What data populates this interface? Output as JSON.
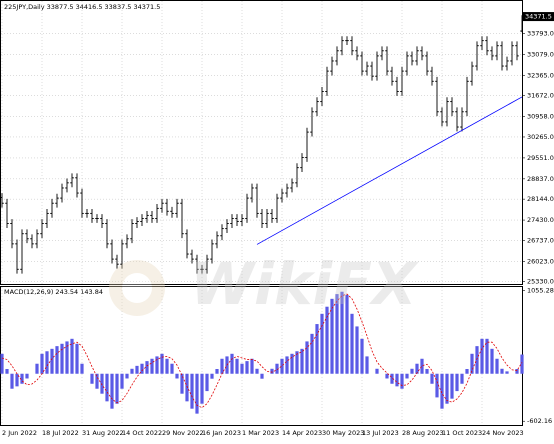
{
  "chart_data": [
    {
      "type": "ohlc",
      "title": "225JPY,Daily  33877.5 34416.5 33837.5 34371.5",
      "watermark": "WikiFX",
      "color": "#000000",
      "grid": true,
      "categories": [
        "2 Jun 2022",
        null,
        null,
        null,
        null,
        null,
        null,
        null,
        "18 Jul 2022",
        null,
        null,
        null,
        null,
        null,
        null,
        null,
        "31 Aug 2022",
        null,
        null,
        null,
        null,
        null,
        null,
        null,
        "14 Oct 2022",
        null,
        null,
        null,
        null,
        null,
        null,
        null,
        "29 Nov 2022",
        null,
        null,
        null,
        null,
        null,
        null,
        null,
        "16 Jan 2023",
        null,
        null,
        null,
        null,
        null,
        null,
        null,
        "1 Mar 2023",
        null,
        null,
        null,
        null,
        null,
        null,
        null,
        "14 Apr 2023",
        null,
        null,
        null,
        null,
        null,
        null,
        null,
        "30 May 2023",
        null,
        null,
        null,
        null,
        null,
        null,
        null,
        "13 Jul 2023",
        null,
        null,
        null,
        null,
        null,
        null,
        null,
        "28 Aug 2023",
        null,
        null,
        null,
        null,
        null,
        null,
        null,
        "11 Oct 2023",
        null,
        null,
        null,
        null,
        null,
        null,
        null,
        "24 Nov 2023",
        null,
        null,
        null,
        null,
        null,
        null,
        null,
        null
      ],
      "open": [
        28200,
        28005,
        27312,
        26619,
        25752,
        26965,
        26792,
        26619,
        26965,
        27312,
        27658,
        28005,
        28180,
        28525,
        28700,
        28872,
        28352,
        27658,
        27658,
        27485,
        27485,
        27312,
        26619,
        26099,
        25926,
        26619,
        26792,
        27312,
        27380,
        27485,
        27590,
        27485,
        27830,
        28005,
        27730,
        27658,
        28005,
        26965,
        26272,
        26099,
        25752,
        25752,
        26099,
        26619,
        26895,
        27139,
        27312,
        27485,
        27380,
        27485,
        28180,
        28525,
        27658,
        27312,
        27658,
        27485,
        28180,
        28352,
        28525,
        28700,
        29218,
        29565,
        30431,
        31124,
        31471,
        31817,
        32511,
        32857,
        33204,
        33550,
        33550,
        33204,
        33030,
        32511,
        32684,
        32337,
        33030,
        33204,
        32511,
        32164,
        31817,
        32511,
        33030,
        32857,
        33204,
        33030,
        32511,
        32164,
        31124,
        30778,
        31471,
        31124,
        30604,
        31124,
        32164,
        32684,
        33377,
        33550,
        33204,
        33030,
        33377,
        32684,
        32857,
        33377,
        33877.5
      ],
      "high": [
        28350,
        28155,
        27462,
        26769,
        27115,
        27115,
        26942,
        27115,
        27462,
        27808,
        28155,
        28330,
        28675,
        28850,
        29022,
        29022,
        28502,
        27808,
        27808,
        27635,
        27635,
        27462,
        26769,
        26249,
        26769,
        26942,
        27462,
        27530,
        27635,
        27740,
        27740,
        27980,
        28155,
        28155,
        27880,
        28155,
        28155,
        27115,
        26422,
        26249,
        25902,
        26249,
        26769,
        27045,
        27289,
        27462,
        27635,
        27635,
        27635,
        28330,
        28675,
        28675,
        27808,
        27808,
        27808,
        28330,
        28502,
        28675,
        28850,
        29368,
        29715,
        30581,
        31274,
        31621,
        31967,
        32661,
        33007,
        33354,
        33700,
        33700,
        33700,
        33354,
        33180,
        32834,
        32834,
        33180,
        33354,
        33354,
        32661,
        32314,
        32661,
        33180,
        33180,
        33354,
        33354,
        33180,
        32661,
        32314,
        31274,
        31621,
        31621,
        31274,
        31274,
        32314,
        32834,
        33527,
        33700,
        33700,
        33354,
        33527,
        33527,
        33007,
        33527,
        33527,
        34416.5
      ],
      "low": [
        27855,
        27162,
        26469,
        25602,
        25602,
        26642,
        26469,
        26469,
        26815,
        27162,
        27508,
        27855,
        28030,
        28375,
        28550,
        28202,
        27508,
        27508,
        27335,
        27335,
        27162,
        26469,
        25949,
        25776,
        25776,
        26469,
        26642,
        27162,
        27230,
        27335,
        27335,
        27335,
        27680,
        27580,
        27508,
        27508,
        26815,
        26122,
        25949,
        25602,
        25602,
        25602,
        25949,
        26469,
        26745,
        26989,
        27162,
        27230,
        27230,
        27335,
        28030,
        27508,
        27162,
        27162,
        27335,
        27335,
        28030,
        28202,
        28375,
        28550,
        29068,
        29415,
        30281,
        30974,
        31321,
        31667,
        32361,
        32707,
        33054,
        33400,
        33054,
        32880,
        32361,
        32361,
        32187,
        32187,
        32880,
        32361,
        32014,
        31667,
        31667,
        32361,
        32707,
        32707,
        32880,
        32361,
        32014,
        30974,
        30628,
        30628,
        30974,
        30454,
        30454,
        30974,
        32014,
        32534,
        33227,
        33054,
        32880,
        32880,
        32534,
        32534,
        32707,
        32880,
        33837.5
      ],
      "close": [
        28005,
        27312,
        26619,
        25752,
        26965,
        26792,
        26619,
        26965,
        27312,
        27658,
        28005,
        28180,
        28525,
        28700,
        28872,
        28352,
        27658,
        27658,
        27485,
        27485,
        27312,
        26619,
        26099,
        25926,
        26619,
        26792,
        27312,
        27380,
        27485,
        27590,
        27485,
        27830,
        28005,
        27730,
        27658,
        28005,
        26965,
        26272,
        26099,
        25752,
        25752,
        26099,
        26619,
        26895,
        27139,
        27312,
        27485,
        27380,
        27485,
        28180,
        28525,
        27658,
        27312,
        27658,
        27485,
        28180,
        28352,
        28525,
        28700,
        29218,
        29565,
        30431,
        31124,
        31471,
        31817,
        32511,
        32857,
        33204,
        33550,
        33550,
        33204,
        33030,
        32511,
        32684,
        32337,
        33030,
        33204,
        32511,
        32164,
        31817,
        32511,
        33030,
        32857,
        33204,
        33030,
        32511,
        32164,
        31124,
        30778,
        31471,
        31124,
        30604,
        31124,
        32164,
        32684,
        33377,
        33550,
        33204,
        33030,
        33377,
        32684,
        32857,
        33377,
        33030,
        34371.5
      ],
      "ylim": [
        25250,
        34800
      ],
      "yticks": [
        {
          "value": 33793,
          "label": "33793.0"
        },
        {
          "value": 33079,
          "label": "33079.0"
        },
        {
          "value": 32365,
          "label": "32365.0"
        },
        {
          "value": 31672,
          "label": "31672.0"
        },
        {
          "value": 30958,
          "label": "30958.0"
        },
        {
          "value": 30265,
          "label": "30265.0"
        },
        {
          "value": 29551,
          "label": "29551.0"
        },
        {
          "value": 28837,
          "label": "28837.0"
        },
        {
          "value": 28144,
          "label": "28144.0"
        },
        {
          "value": 27430,
          "label": "27430.0"
        },
        {
          "value": 26737,
          "label": "26737.0"
        },
        {
          "value": 26023,
          "label": "26023.0"
        },
        {
          "value": 25330,
          "label": "25330.0"
        }
      ],
      "trendline": {
        "x": [
          51,
          104
        ],
        "y": [
          26600,
          31630
        ],
        "color": "#0000ff"
      }
    },
    {
      "type": "macd",
      "title": "MACD(12,26,9) 243.54 143.84",
      "color": "#5a5ae6",
      "signal_color": "#e00000",
      "macd": [
        253,
        60,
        -190,
        -160,
        -127,
        -60,
        0,
        127,
        253,
        285,
        316,
        350,
        380,
        410,
        443,
        380,
        127,
        0,
        -127,
        -190,
        -253,
        -350,
        -443,
        -380,
        -190,
        -60,
        63,
        100,
        127,
        160,
        190,
        220,
        253,
        190,
        127,
        -60,
        -253,
        -350,
        -443,
        -506,
        -380,
        -220,
        -63,
        60,
        190,
        220,
        253,
        190,
        127,
        160,
        190,
        63,
        -63,
        0,
        63,
        127,
        190,
        220,
        253,
        285,
        316,
        410,
        506,
        630,
        760,
        850,
        950,
        1010,
        1040,
        1000,
        760,
        600,
        443,
        220,
        0,
        63,
        0,
        -60,
        -127,
        -160,
        -190,
        -60,
        63,
        127,
        190,
        60,
        -127,
        -300,
        -443,
        -380,
        -316,
        -220,
        -127,
        60,
        253,
        350,
        443,
        443,
        316,
        190,
        63,
        30,
        0,
        60,
        243.54
      ],
      "signal": [
        200,
        180,
        100,
        0,
        -90,
        -140,
        -130,
        -80,
        0,
        100,
        190,
        260,
        310,
        350,
        380,
        400,
        350,
        230,
        90,
        -40,
        -140,
        -230,
        -320,
        -370,
        -340,
        -250,
        -140,
        -40,
        40,
        100,
        140,
        180,
        210,
        220,
        190,
        110,
        -20,
        -160,
        -290,
        -400,
        -430,
        -380,
        -270,
        -140,
        0,
        110,
        190,
        220,
        200,
        180,
        180,
        160,
        90,
        30,
        20,
        50,
        100,
        160,
        210,
        250,
        280,
        330,
        400,
        500,
        610,
        720,
        830,
        920,
        990,
        1010,
        950,
        820,
        660,
        480,
        290,
        150,
        70,
        10,
        -50,
        -110,
        -150,
        -140,
        -80,
        10,
        100,
        120,
        40,
        -100,
        -250,
        -340,
        -360,
        -320,
        -240,
        -120,
        40,
        190,
        320,
        400,
        400,
        320,
        200,
        110,
        50,
        40,
        143.84
      ],
      "ylim": [
        -650,
        1100
      ],
      "yticks": [
        1055.28,
        -602.16
      ]
    }
  ]
}
